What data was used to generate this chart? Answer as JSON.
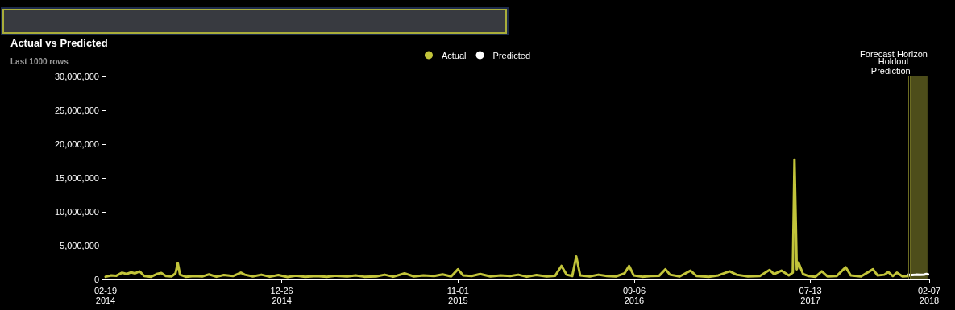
{
  "chart_data": {
    "type": "line",
    "title": "Actual vs Predicted",
    "subtitle": "Last 1000 rows",
    "series": [
      {
        "name": "Actual",
        "color": "#c2c43a",
        "x": [
          "2014-02-19",
          "2014-03-01",
          "2014-03-10",
          "2014-03-20",
          "2014-03-28",
          "2014-04-05",
          "2014-04-12",
          "2014-04-20",
          "2014-04-28",
          "2014-05-10",
          "2014-05-20",
          "2014-05-28",
          "2014-06-05",
          "2014-06-15",
          "2014-06-22",
          "2014-06-26",
          "2014-06-30",
          "2014-07-10",
          "2014-07-25",
          "2014-08-08",
          "2014-08-20",
          "2014-09-02",
          "2014-09-15",
          "2014-10-01",
          "2014-10-15",
          "2014-10-22",
          "2014-11-05",
          "2014-11-20",
          "2014-12-05",
          "2014-12-20",
          "2015-01-05",
          "2015-01-20",
          "2015-02-05",
          "2015-02-25",
          "2015-03-15",
          "2015-04-01",
          "2015-04-20",
          "2015-05-05",
          "2015-05-20",
          "2015-06-10",
          "2015-06-25",
          "2015-07-10",
          "2015-07-30",
          "2015-08-15",
          "2015-09-01",
          "2015-09-20",
          "2015-10-05",
          "2015-10-20",
          "2015-11-01",
          "2015-11-10",
          "2015-11-25",
          "2015-12-10",
          "2015-12-28",
          "2016-01-15",
          "2016-02-01",
          "2016-02-15",
          "2016-03-01",
          "2016-03-18",
          "2016-04-05",
          "2016-04-20",
          "2016-05-01",
          "2016-05-10",
          "2016-05-20",
          "2016-05-27",
          "2016-06-03",
          "2016-06-20",
          "2016-07-05",
          "2016-07-20",
          "2016-08-05",
          "2016-08-20",
          "2016-08-28",
          "2016-09-05",
          "2016-09-20",
          "2016-10-05",
          "2016-10-20",
          "2016-10-31",
          "2016-11-08",
          "2016-11-25",
          "2016-12-14",
          "2016-12-25",
          "2017-01-15",
          "2017-02-01",
          "2017-02-21",
          "2017-03-05",
          "2017-03-25",
          "2017-04-15",
          "2017-05-02",
          "2017-05-10",
          "2017-05-23",
          "2017-06-05",
          "2017-06-12",
          "2017-06-15",
          "2017-06-19",
          "2017-06-22",
          "2017-06-30",
          "2017-07-10",
          "2017-07-22",
          "2017-08-02",
          "2017-08-12",
          "2017-08-28",
          "2017-09-13",
          "2017-09-22",
          "2017-10-10",
          "2017-10-31",
          "2017-11-08",
          "2017-11-20",
          "2017-11-27",
          "2017-12-05",
          "2017-12-12",
          "2017-12-22",
          "2018-01-02"
        ],
        "values": [
          400000,
          600000,
          550000,
          1000000,
          800000,
          1050000,
          900000,
          1200000,
          500000,
          400000,
          800000,
          950000,
          500000,
          450000,
          900000,
          2400000,
          700000,
          400000,
          500000,
          450000,
          750000,
          400000,
          650000,
          500000,
          1000000,
          700000,
          450000,
          700000,
          400000,
          650000,
          350000,
          550000,
          400000,
          500000,
          400000,
          550000,
          450000,
          600000,
          400000,
          450000,
          700000,
          400000,
          900000,
          450000,
          600000,
          500000,
          750000,
          450000,
          1500000,
          600000,
          500000,
          800000,
          450000,
          600000,
          500000,
          700000,
          400000,
          650000,
          450000,
          550000,
          2000000,
          700000,
          500000,
          3400000,
          600000,
          450000,
          700000,
          500000,
          450000,
          900000,
          2000000,
          600000,
          400000,
          500000,
          550000,
          1500000,
          700000,
          450000,
          1300000,
          500000,
          400000,
          600000,
          1200000,
          700000,
          450000,
          500000,
          1400000,
          800000,
          1300000,
          600000,
          1000000,
          17700000,
          1500000,
          2500000,
          800000,
          500000,
          400000,
          1200000,
          450000,
          500000,
          1800000,
          600000,
          450000,
          1500000,
          600000,
          700000,
          1100000,
          500000,
          1000000,
          450000,
          500000
        ]
      },
      {
        "name": "Predicted",
        "color": "#ffffff",
        "x": [
          "2018-01-02",
          "2018-01-08",
          "2018-01-15",
          "2018-01-22",
          "2018-01-29",
          "2018-02-02",
          "2018-02-05"
        ],
        "values": [
          700000,
          650000,
          700000,
          680000,
          720000,
          800000,
          750000
        ]
      }
    ],
    "xlim": [
      "2014-02-19",
      "2018-02-07"
    ],
    "xticks": [
      {
        "value": "2014-02-19",
        "label": "02-19\n2014"
      },
      {
        "value": "2014-12-26",
        "label": "12-26\n2014"
      },
      {
        "value": "2015-11-01",
        "label": "11-01\n2015"
      },
      {
        "value": "2016-09-06",
        "label": "09-06\n2016"
      },
      {
        "value": "2017-07-13",
        "label": "07-13\n2017"
      },
      {
        "value": "2018-02-07",
        "label": "02-07\n2018"
      }
    ],
    "ylim": [
      0,
      30000000
    ],
    "yticks": [
      0,
      {
        "value": 5000000,
        "label": "5,000,000"
      },
      {
        "value": 10000000,
        "label": "10,000,000"
      },
      {
        "value": 15000000,
        "label": "15,000,000"
      },
      {
        "value": 20000000,
        "label": "20,000,000"
      },
      {
        "value": 25000000,
        "label": "25,000,000"
      },
      {
        "value": 30000000,
        "label": "30,000,000"
      }
    ],
    "ref_lines": [
      {
        "axis": "x",
        "value": "2018-01-02",
        "label": "Holdout",
        "color": "#6b6b22"
      },
      {
        "axis": "x",
        "value": "2018-01-05",
        "label": "Prediction",
        "color": "#6b6b22"
      }
    ],
    "bands": [
      {
        "axis": "x",
        "from": "2018-01-05",
        "to": "2018-02-04",
        "label": "Forecast Horizon",
        "color": "#4d4d1a"
      }
    ],
    "legend": "top",
    "grid": false,
    "marker": "none",
    "line_style": "solid"
  }
}
